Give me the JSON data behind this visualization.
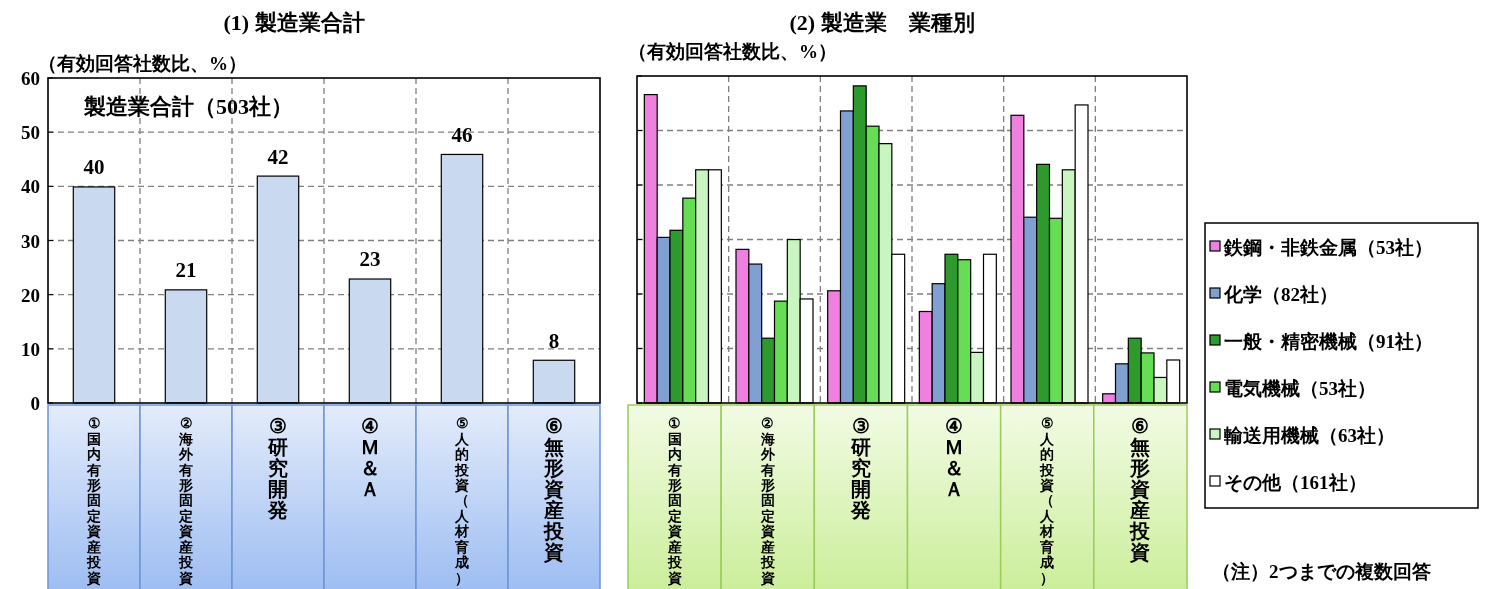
{
  "chart_data": [
    {
      "type": "bar",
      "title": "(1) 製造業合計",
      "ylabel": "（有効回答社数比、%）",
      "categories": [
        "①国内有形固定資産投資",
        "②海外有形固定資産投資",
        "③研究開発",
        "④Ｍ＆Ａ",
        "⑤人的投資（人材育成）",
        "⑥無形資産投資"
      ],
      "values": [
        40,
        21,
        42,
        23,
        46,
        8
      ],
      "color": "#c9d9ef",
      "ylim": [
        0,
        60
      ],
      "yticks": [
        0,
        10,
        20,
        30,
        40,
        50,
        60
      ],
      "grid": true,
      "data_labels": true,
      "annotations": [
        "製造業合計（503社）"
      ]
    },
    {
      "type": "bar",
      "title": "(2) 製造業　業種別",
      "ylabel": "（有効回答社数比、%）",
      "categories": [
        "①国内有形固定資産投資",
        "②海外有形固定資産投資",
        "③研究開発",
        "④Ｍ＆Ａ",
        "⑤人的投資（人材育成）",
        "⑥無形資産投資"
      ],
      "series": [
        {
          "name": "鉄鋼・非鉄金属（53社）",
          "color": "#f080e0",
          "values": [
            56.7,
            28.3,
            20.7,
            16.9,
            52.9,
            1.8
          ]
        },
        {
          "name": "化学（82社）",
          "color": "#7fa0d0",
          "values": [
            30.5,
            25.6,
            53.7,
            22.0,
            34.2,
            7.3
          ]
        },
        {
          "name": "一般・精密機械（91社）",
          "color": "#2e9a2e",
          "values": [
            31.8,
            12.0,
            58.3,
            27.4,
            43.9,
            12.0
          ]
        },
        {
          "name": "電気機械（53社）",
          "color": "#66dd55",
          "values": [
            37.7,
            18.8,
            50.9,
            26.4,
            34.0,
            9.3
          ]
        },
        {
          "name": "輸送用機械（63社）",
          "color": "#c8f5c0",
          "values": [
            42.9,
            30.1,
            47.7,
            9.4,
            42.9,
            4.8
          ]
        },
        {
          "name": "その他（161社）",
          "color": "#ffffff",
          "values": [
            42.9,
            19.2,
            27.4,
            27.4,
            54.8,
            8.0
          ]
        }
      ],
      "ylim": [
        0,
        60
      ],
      "yticks": [
        0,
        10,
        20,
        30,
        40,
        50,
        60
      ],
      "grid": true,
      "legend": "right",
      "tick_labels": "x",
      "annotations": [
        "（注）2つまでの複数回答"
      ]
    }
  ]
}
